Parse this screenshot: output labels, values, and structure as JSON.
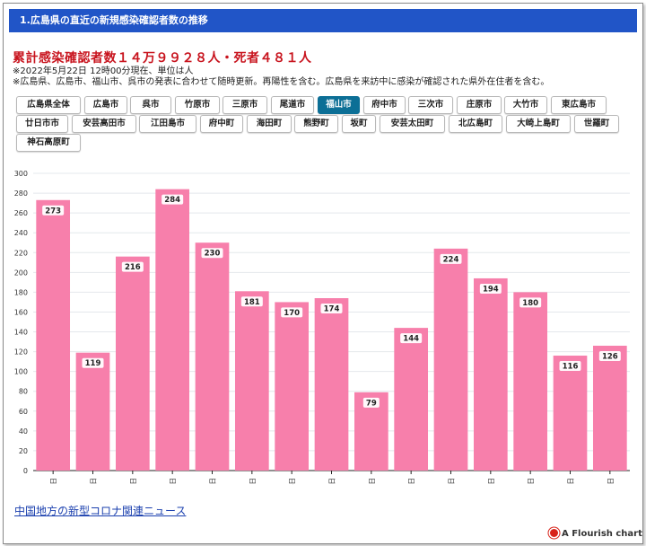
{
  "header": {
    "title": "1.広島県の直近の新規感染確認者数の推移"
  },
  "summary": {
    "title": "累計感染確認者数１４万９９２８人・死者４８１人",
    "note1": "※2022年5月22日 12時00分現在、単位は人",
    "note2": "※広島県、広島市、福山市、呉市の発表に合わせて随時更新。再陽性を含む。広島県を来訪中に感染が確認された県外在住者を含む。"
  },
  "filters": {
    "active": "福山市",
    "buttons": [
      "広島県全体",
      "広島市",
      "呉市",
      "竹原市",
      "三原市",
      "尾道市",
      "福山市",
      "府中市",
      "三次市",
      "庄原市",
      "大竹市",
      "東広島市",
      "廿日市市",
      "安芸高田市",
      "江田島市",
      "府中町",
      "海田町",
      "熊野町",
      "坂町",
      "安芸太田町",
      "北広島町",
      "大崎上島町",
      "世羅町",
      "神石高原町"
    ]
  },
  "colors": {
    "bar": "#f77fab",
    "header": "#2155c7",
    "title": "#c8141e",
    "active_button": "#0c6f96"
  },
  "chart_data": {
    "type": "bar",
    "categories": [
      "8日",
      "9日",
      "10日",
      "11日",
      "12日",
      "13日",
      "14日",
      "15日",
      "16日",
      "17日",
      "18日",
      "19日",
      "20日",
      "21日",
      "22日"
    ],
    "values": [
      273,
      119,
      216,
      284,
      230,
      181,
      170,
      174,
      79,
      144,
      224,
      194,
      180,
      116,
      126
    ],
    "ylim": [
      0,
      300
    ],
    "yticks": [
      0,
      20,
      40,
      60,
      80,
      100,
      120,
      140,
      160,
      180,
      200,
      220,
      240,
      260,
      280,
      300
    ],
    "grid": true,
    "data_labels": true
  },
  "footer": {
    "link": "中国地方の新型コロナ関連ニュース",
    "credit": "A Flourish chart"
  }
}
